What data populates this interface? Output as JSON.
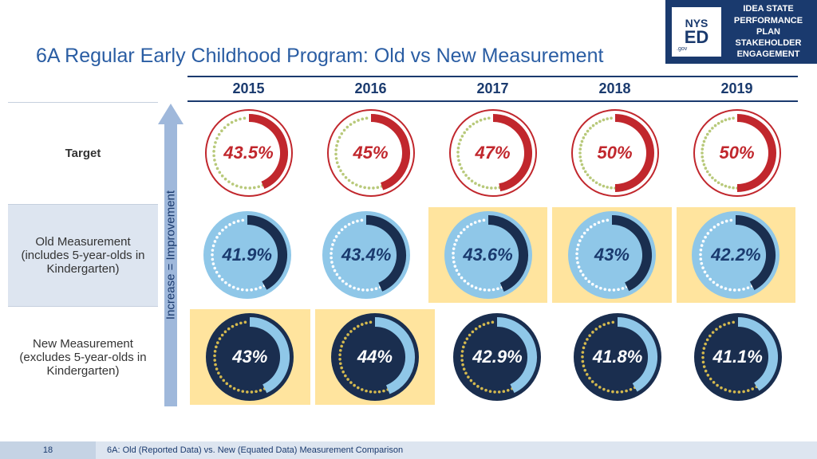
{
  "title": {
    "text": "6A Regular Early Childhood Program: Old vs New Measurement",
    "color": "#2a5da3"
  },
  "logo": {
    "nys": "NYS",
    "ed": "ED",
    "gov": ".gov",
    "lines": [
      "IDEA STATE",
      "PERFORMANCE",
      "PLAN",
      "STAKEHOLDER",
      "ENGAGEMENT"
    ]
  },
  "arrow_label": "Increase = Improvement",
  "years": [
    "2015",
    "2016",
    "2017",
    "2018",
    "2019"
  ],
  "rows": [
    {
      "label": "Target",
      "label_bold": true,
      "shaded": false,
      "style": "target",
      "cells": [
        {
          "pct": 43.5,
          "label": "43.5%",
          "hl": false
        },
        {
          "pct": 45,
          "label": "45%",
          "hl": false
        },
        {
          "pct": 47,
          "label": "47%",
          "hl": false
        },
        {
          "pct": 50,
          "label": "50%",
          "hl": false
        },
        {
          "pct": 50,
          "label": "50%",
          "hl": false
        }
      ]
    },
    {
      "label": "Old Measurement (includes 5-year-olds in Kindergarten)",
      "label_bold": false,
      "shaded": true,
      "style": "old",
      "cells": [
        {
          "pct": 41.9,
          "label": "41.9%",
          "hl": false
        },
        {
          "pct": 43.4,
          "label": "43.4%",
          "hl": false
        },
        {
          "pct": 43.6,
          "label": "43.6%",
          "hl": true
        },
        {
          "pct": 43,
          "label": "43%",
          "hl": true
        },
        {
          "pct": 42.2,
          "label": "42.2%",
          "hl": true
        }
      ]
    },
    {
      "label": "New Measurement (excludes 5-year-olds in Kindergarten)",
      "label_bold": false,
      "shaded": false,
      "style": "new",
      "cells": [
        {
          "pct": 43,
          "label": "43%",
          "hl": true
        },
        {
          "pct": 44,
          "label": "44%",
          "hl": true
        },
        {
          "pct": 42.9,
          "label": "42.9%",
          "hl": false
        },
        {
          "pct": 41.8,
          "label": "41.8%",
          "hl": false
        },
        {
          "pct": 41.1,
          "label": "41.1%",
          "hl": false
        }
      ]
    }
  ],
  "styles": {
    "target": {
      "bg": "#ffffff",
      "arc": "#c1272d",
      "dotted": "#b8c97a",
      "text": "#c1272d",
      "stroke_width": 10,
      "outline": "#c1272d"
    },
    "old": {
      "bg": "#8fc7e8",
      "arc": "#1a2e4f",
      "dotted": "#ffffff",
      "text": "#1a3a6e",
      "stroke_width": 12,
      "outline": "none"
    },
    "new": {
      "bg": "#1a2e4f",
      "arc": "#8fc7e8",
      "dotted": "#d4b94e",
      "text": "#ffffff",
      "stroke_width": 12,
      "outline": "none"
    }
  },
  "footer": {
    "page": "18",
    "text": "6A: Old (Reported Data) vs. New (Equated Data) Measurement Comparison"
  }
}
